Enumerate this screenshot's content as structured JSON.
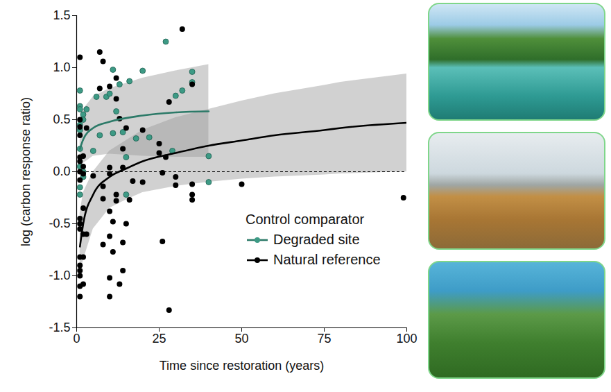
{
  "chart_data": {
    "type": "scatter",
    "x_label": "Time since restoration (years)",
    "y_label": "log (carbon response ratio)",
    "xlim": [
      0,
      100
    ],
    "xticks": [
      0,
      25,
      50,
      75,
      100
    ],
    "ylim": [
      -1.5,
      1.5
    ],
    "yticks": [
      {
        "value": -1.5,
        "label": "-1.5"
      },
      {
        "value": -1.0,
        "label": "-1.0"
      },
      {
        "value": -0.5,
        "label": "-0.5"
      },
      {
        "value": 0.0,
        "label": "0.0"
      },
      {
        "value": 0.5,
        "label": "0.5"
      },
      {
        "value": 1.0,
        "label": "1.0"
      },
      {
        "value": 1.5,
        "label": "1.5"
      }
    ],
    "grid": false,
    "legend": "bottom-right",
    "legend_title": "Control comparator",
    "reference_lines": [
      {
        "y": 0,
        "line_style": "dashed"
      }
    ],
    "series": [
      {
        "name": "Degraded site",
        "color": "#3d9a85",
        "marker": "circle",
        "x": [
          1,
          1,
          1,
          1,
          1,
          2,
          2,
          3,
          1,
          1,
          2,
          1,
          1,
          2,
          6,
          9,
          10,
          11,
          12,
          13,
          5,
          7,
          11,
          14,
          15,
          16,
          18,
          20,
          22,
          27,
          29,
          30,
          32,
          35,
          35,
          40,
          40,
          15
        ],
        "values": [
          0.78,
          0.63,
          0.6,
          0.45,
          0.4,
          0.55,
          0.5,
          0.6,
          0.22,
          0.05,
          -0.05,
          -0.15,
          -0.22,
          0.0,
          0.72,
          0.72,
          0.75,
          0.98,
          0.58,
          0.84,
          0.2,
          0.35,
          0.37,
          0.38,
          0.14,
          0.87,
          0.32,
          0.97,
          0.33,
          1.25,
          0.2,
          0.73,
          0.78,
          0.96,
          0.86,
          0.15,
          -0.1,
          -0.22
        ],
        "fit": {
          "x": [
            1,
            2,
            5,
            10,
            20,
            30,
            40
          ],
          "values": [
            0.22,
            0.31,
            0.42,
            0.48,
            0.54,
            0.57,
            0.58
          ],
          "lower": [
            0.0,
            0.08,
            0.15,
            0.17,
            0.15,
            0.14,
            0.14
          ],
          "upper": [
            0.5,
            0.6,
            0.72,
            0.8,
            0.9,
            0.97,
            1.03
          ]
        }
      },
      {
        "name": "Natural reference",
        "color": "#000000",
        "marker": "circle",
        "x": [
          1,
          1,
          1,
          1,
          1,
          1,
          1,
          2,
          1,
          2,
          2,
          3,
          2,
          1,
          1,
          1,
          2,
          3,
          1,
          2,
          1,
          1,
          1,
          1,
          2,
          1,
          5,
          7,
          8,
          7,
          10,
          12,
          12,
          13,
          15,
          20,
          8,
          8,
          8,
          10,
          10,
          10,
          10,
          10,
          10,
          11,
          11,
          12,
          12,
          13,
          14,
          14,
          15,
          16,
          14,
          14,
          17,
          20,
          25,
          25,
          26,
          26,
          27,
          28,
          28,
          30,
          30,
          32,
          35,
          35,
          35,
          35,
          50,
          99
        ],
        "values": [
          1.1,
          0.5,
          0.43,
          0.35,
          0.14,
          0.1,
          0.0,
          -0.02,
          -0.08,
          0.05,
          0.15,
          0.42,
          -0.35,
          -0.45,
          -0.5,
          -0.55,
          -0.6,
          -0.6,
          -0.82,
          -0.82,
          -0.9,
          -0.95,
          -1.0,
          -1.1,
          -1.08,
          -1.2,
          -0.04,
          1.15,
          1.06,
          0.8,
          0.82,
          0.9,
          0.7,
          0.51,
          0.42,
          0.4,
          -0.14,
          -0.26,
          -0.7,
          0.04,
          -0.02,
          -0.38,
          -1.02,
          -1.2,
          -0.62,
          -0.77,
          -0.48,
          -0.28,
          -0.22,
          -1.08,
          -0.95,
          -0.68,
          -0.5,
          -0.27,
          0.22,
          0.04,
          -0.09,
          -0.1,
          0.27,
          0.18,
          -0.01,
          -0.67,
          0.14,
          0.67,
          -1.33,
          -0.05,
          -0.13,
          1.37,
          0.84,
          -0.12,
          -0.22,
          -0.27,
          -0.12,
          -0.25
        ],
        "fit": {
          "x": [
            1,
            2,
            5,
            10,
            15,
            20,
            30,
            40,
            50,
            60,
            75,
            80,
            100
          ],
          "values": [
            -0.72,
            -0.5,
            -0.22,
            -0.05,
            0.03,
            0.1,
            0.18,
            0.25,
            0.3,
            0.35,
            0.4,
            0.42,
            0.47
          ],
          "lower": [
            -1.0,
            -0.85,
            -0.55,
            -0.35,
            -0.27,
            -0.2,
            -0.14,
            -0.1,
            -0.07,
            -0.05,
            -0.03,
            -0.02,
            0.0
          ],
          "upper": [
            -0.4,
            -0.2,
            0.0,
            0.2,
            0.3,
            0.4,
            0.52,
            0.6,
            0.68,
            0.75,
            0.83,
            0.86,
            0.94
          ]
        }
      }
    ]
  }
}
